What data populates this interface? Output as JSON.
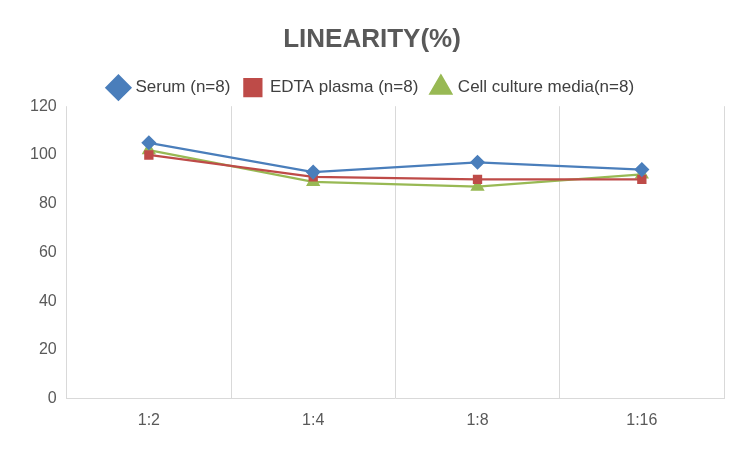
{
  "chart_data": {
    "type": "line",
    "title": "LINEARITY(%)",
    "categories": [
      "1:2",
      "1:4",
      "1:8",
      "1:16"
    ],
    "series": [
      {
        "name": "Serum (n=8)",
        "color": "#4a7ebb",
        "marker": "diamond",
        "values": [
          105,
          93,
          97,
          94
        ]
      },
      {
        "name": "EDTA plasma (n=8)",
        "color": "#be4b48",
        "marker": "square",
        "values": [
          100,
          91,
          90,
          90
        ]
      },
      {
        "name": "Cell culture media(n=8)",
        "color": "#98b954",
        "marker": "triangle",
        "values": [
          102,
          89,
          87,
          92
        ]
      }
    ],
    "ylim": [
      0,
      120
    ],
    "yticks": [
      0,
      20,
      40,
      60,
      80,
      100,
      120
    ],
    "grid": true,
    "legend": "top"
  }
}
